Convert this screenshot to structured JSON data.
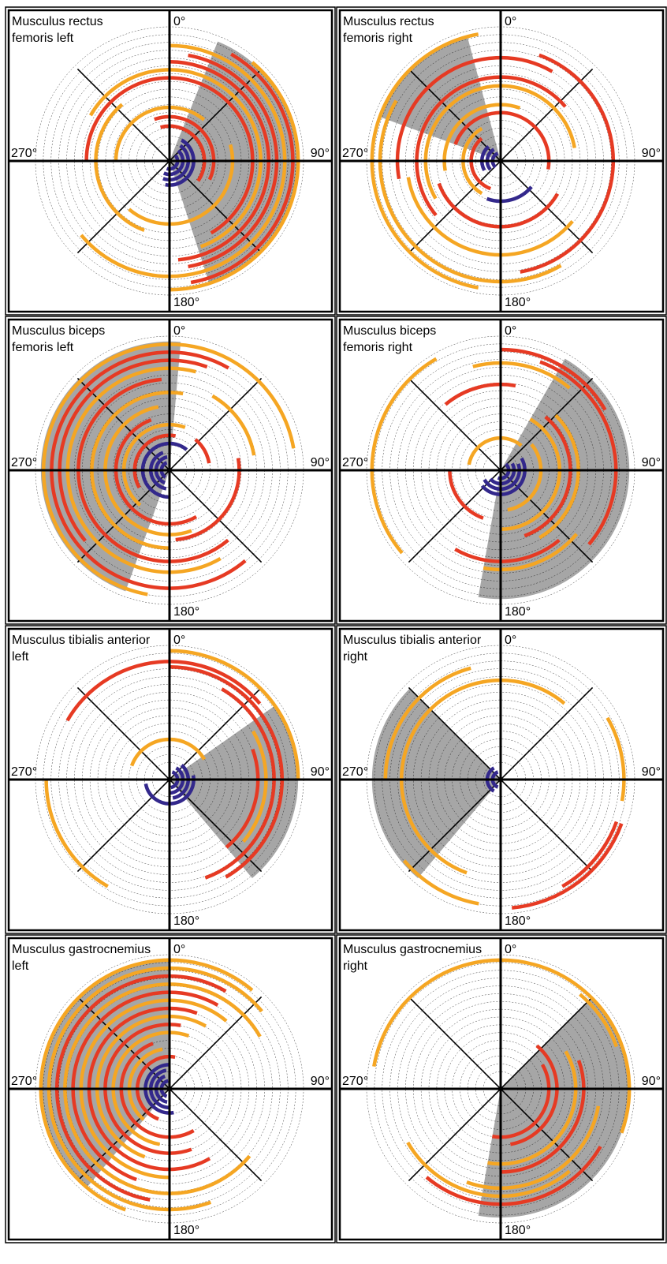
{
  "colors": {
    "red": "#e63a23",
    "orange": "#f5a623",
    "blue": "#33288c",
    "sector": "#a6a6a6",
    "axis": "#000000",
    "ring": "#000000"
  },
  "angle_labels": [
    "0°",
    "90°",
    "180°",
    "270°"
  ],
  "chart_data": [
    {
      "type": "polar-arc",
      "title": [
        "Musculus rectus",
        "femoris left"
      ],
      "sector": {
        "start": 22,
        "end": 162
      },
      "arcs": [
        {
          "r": 0.06,
          "start": 45,
          "end": 200,
          "color": "blue"
        },
        {
          "r": 0.1,
          "start": 40,
          "end": 205,
          "color": "blue"
        },
        {
          "r": 0.14,
          "start": 35,
          "end": 200,
          "color": "blue"
        },
        {
          "r": 0.18,
          "start": 30,
          "end": 190,
          "color": "blue"
        },
        {
          "r": 0.26,
          "start": 345,
          "end": 125,
          "color": "red"
        },
        {
          "r": 0.33,
          "start": 340,
          "end": 115,
          "color": "red"
        },
        {
          "r": 0.4,
          "start": 270,
          "end": 40,
          "color": "orange"
        },
        {
          "r": 0.47,
          "start": 75,
          "end": 220,
          "color": "orange"
        },
        {
          "r": 0.55,
          "start": 200,
          "end": 320,
          "color": "orange"
        },
        {
          "r": 0.62,
          "start": 270,
          "end": 150,
          "color": "red"
        },
        {
          "r": 0.68,
          "start": 300,
          "end": 160,
          "color": "orange"
        },
        {
          "r": 0.74,
          "start": 0,
          "end": 175,
          "color": "red"
        },
        {
          "r": 0.8,
          "start": 10,
          "end": 170,
          "color": "red"
        },
        {
          "r": 0.86,
          "start": 0,
          "end": 230,
          "color": "orange"
        },
        {
          "r": 0.92,
          "start": 30,
          "end": 170,
          "color": "red"
        },
        {
          "r": 0.96,
          "start": 40,
          "end": 180,
          "color": "orange"
        }
      ]
    },
    {
      "type": "polar-arc",
      "title": [
        "Musculus rectus",
        "femoris right"
      ],
      "sector": {
        "start": 290,
        "end": 345
      },
      "arcs": [
        {
          "r": 0.06,
          "start": 220,
          "end": 340,
          "color": "blue"
        },
        {
          "r": 0.1,
          "start": 230,
          "end": 330,
          "color": "blue"
        },
        {
          "r": 0.14,
          "start": 240,
          "end": 320,
          "color": "blue"
        },
        {
          "r": 0.3,
          "start": 130,
          "end": 200,
          "color": "blue"
        },
        {
          "r": 0.22,
          "start": 200,
          "end": 320,
          "color": "red"
        },
        {
          "r": 0.28,
          "start": 210,
          "end": 330,
          "color": "orange"
        },
        {
          "r": 0.36,
          "start": 290,
          "end": 100,
          "color": "red"
        },
        {
          "r": 0.42,
          "start": 260,
          "end": 20,
          "color": "orange"
        },
        {
          "r": 0.49,
          "start": 120,
          "end": 250,
          "color": "red"
        },
        {
          "r": 0.56,
          "start": 240,
          "end": 80,
          "color": "orange"
        },
        {
          "r": 0.63,
          "start": 230,
          "end": 50,
          "color": "red"
        },
        {
          "r": 0.7,
          "start": 130,
          "end": 260,
          "color": "orange"
        },
        {
          "r": 0.77,
          "start": 260,
          "end": 30,
          "color": "red"
        },
        {
          "r": 0.84,
          "start": 20,
          "end": 170,
          "color": "red"
        },
        {
          "r": 0.9,
          "start": 150,
          "end": 300,
          "color": "orange"
        },
        {
          "r": 0.96,
          "start": 190,
          "end": 350,
          "color": "orange"
        }
      ]
    },
    {
      "type": "polar-arc",
      "title": [
        "Musculus biceps",
        "femoris left"
      ],
      "sector": {
        "start": 200,
        "end": 365
      },
      "arcs": [
        {
          "r": 0.06,
          "start": 210,
          "end": 340,
          "color": "blue"
        },
        {
          "r": 0.1,
          "start": 200,
          "end": 350,
          "color": "blue"
        },
        {
          "r": 0.14,
          "start": 190,
          "end": 340,
          "color": "blue"
        },
        {
          "r": 0.2,
          "start": 180,
          "end": 40,
          "color": "blue"
        },
        {
          "r": 0.26,
          "start": 240,
          "end": 10,
          "color": "red"
        },
        {
          "r": 0.3,
          "start": 40,
          "end": 80,
          "color": "red"
        },
        {
          "r": 0.34,
          "start": 220,
          "end": 20,
          "color": "orange"
        },
        {
          "r": 0.4,
          "start": 150,
          "end": 340,
          "color": "red"
        },
        {
          "r": 0.48,
          "start": 160,
          "end": 350,
          "color": "orange"
        },
        {
          "r": 0.52,
          "start": 80,
          "end": 175,
          "color": "red"
        },
        {
          "r": 0.58,
          "start": 180,
          "end": 10,
          "color": "orange"
        },
        {
          "r": 0.64,
          "start": 30,
          "end": 80,
          "color": "orange"
        },
        {
          "r": 0.68,
          "start": 140,
          "end": 355,
          "color": "red"
        },
        {
          "r": 0.76,
          "start": 150,
          "end": 15,
          "color": "orange"
        },
        {
          "r": 0.82,
          "start": 230,
          "end": 20,
          "color": "red"
        },
        {
          "r": 0.88,
          "start": 140,
          "end": 30,
          "color": "red"
        },
        {
          "r": 0.94,
          "start": 190,
          "end": 80,
          "color": "orange"
        }
      ]
    },
    {
      "type": "polar-arc",
      "title": [
        "Musculus biceps",
        "femoris right"
      ],
      "sector": {
        "start": 30,
        "end": 190
      },
      "arcs": [
        {
          "r": 0.06,
          "start": 40,
          "end": 200,
          "color": "blue"
        },
        {
          "r": 0.1,
          "start": 60,
          "end": 230,
          "color": "blue"
        },
        {
          "r": 0.14,
          "start": 70,
          "end": 240,
          "color": "blue"
        },
        {
          "r": 0.18,
          "start": 60,
          "end": 230,
          "color": "blue"
        },
        {
          "r": 0.24,
          "start": 280,
          "end": 40,
          "color": "orange"
        },
        {
          "r": 0.3,
          "start": 50,
          "end": 170,
          "color": "orange"
        },
        {
          "r": 0.38,
          "start": 200,
          "end": 270,
          "color": "red"
        },
        {
          "r": 0.44,
          "start": 30,
          "end": 180,
          "color": "orange"
        },
        {
          "r": 0.52,
          "start": 40,
          "end": 160,
          "color": "red"
        },
        {
          "r": 0.58,
          "start": 45,
          "end": 150,
          "color": "orange"
        },
        {
          "r": 0.64,
          "start": 320,
          "end": 10,
          "color": "red"
        },
        {
          "r": 0.68,
          "start": 140,
          "end": 210,
          "color": "red"
        },
        {
          "r": 0.74,
          "start": 130,
          "end": 190,
          "color": "orange"
        },
        {
          "r": 0.8,
          "start": 345,
          "end": 40,
          "color": "orange"
        },
        {
          "r": 0.86,
          "start": 20,
          "end": 130,
          "color": "red"
        },
        {
          "r": 0.9,
          "start": 0,
          "end": 60,
          "color": "red"
        },
        {
          "r": 0.96,
          "start": 230,
          "end": 330,
          "color": "orange"
        }
      ]
    },
    {
      "type": "polar-arc",
      "title": [
        "Musculus tibialis anterior",
        "left"
      ],
      "sector": {
        "start": 55,
        "end": 140
      },
      "arcs": [
        {
          "r": 0.06,
          "start": 20,
          "end": 170,
          "color": "blue"
        },
        {
          "r": 0.1,
          "start": 30,
          "end": 180,
          "color": "blue"
        },
        {
          "r": 0.14,
          "start": 40,
          "end": 170,
          "color": "blue"
        },
        {
          "r": 0.18,
          "start": 80,
          "end": 260,
          "color": "blue"
        },
        {
          "r": 0.3,
          "start": 290,
          "end": 60,
          "color": "orange"
        },
        {
          "r": 0.66,
          "start": 70,
          "end": 140,
          "color": "red"
        },
        {
          "r": 0.72,
          "start": 60,
          "end": 130,
          "color": "orange"
        },
        {
          "r": 0.78,
          "start": 30,
          "end": 160,
          "color": "red"
        },
        {
          "r": 0.84,
          "start": 0,
          "end": 150,
          "color": "red"
        },
        {
          "r": 0.88,
          "start": 300,
          "end": 50,
          "color": "red"
        },
        {
          "r": 0.92,
          "start": 210,
          "end": 270,
          "color": "orange"
        },
        {
          "r": 0.96,
          "start": 0,
          "end": 90,
          "color": "orange"
        }
      ]
    },
    {
      "type": "polar-arc",
      "title": [
        "Musculus tibialis anterior",
        "right"
      ],
      "sector": {
        "start": 220,
        "end": 315
      },
      "arcs": [
        {
          "r": 0.06,
          "start": 200,
          "end": 340,
          "color": "blue"
        },
        {
          "r": 0.1,
          "start": 210,
          "end": 330,
          "color": "blue"
        },
        {
          "r": 0.74,
          "start": 200,
          "end": 40,
          "color": "orange"
        },
        {
          "r": 0.86,
          "start": 270,
          "end": 345,
          "color": "orange"
        },
        {
          "r": 0.92,
          "start": 110,
          "end": 150,
          "color": "red"
        },
        {
          "r": 0.96,
          "start": 110,
          "end": 175,
          "color": "red"
        },
        {
          "r": 0.94,
          "start": 190,
          "end": 230,
          "color": "orange"
        },
        {
          "r": 0.92,
          "start": 60,
          "end": 100,
          "color": "orange"
        }
      ]
    },
    {
      "type": "polar-arc",
      "title": [
        "Musculus gastrocnemius",
        "left"
      ],
      "sector": {
        "start": 220,
        "end": 360
      },
      "arcs": [
        {
          "r": 0.06,
          "start": 200,
          "end": 350,
          "color": "blue"
        },
        {
          "r": 0.1,
          "start": 190,
          "end": 340,
          "color": "blue"
        },
        {
          "r": 0.14,
          "start": 180,
          "end": 350,
          "color": "blue"
        },
        {
          "r": 0.18,
          "start": 170,
          "end": 360,
          "color": "blue"
        },
        {
          "r": 0.24,
          "start": 200,
          "end": 10,
          "color": "red"
        },
        {
          "r": 0.3,
          "start": 220,
          "end": 350,
          "color": "orange"
        },
        {
          "r": 0.36,
          "start": 150,
          "end": 340,
          "color": "red"
        },
        {
          "r": 0.42,
          "start": 190,
          "end": 20,
          "color": "orange"
        },
        {
          "r": 0.48,
          "start": 160,
          "end": 10,
          "color": "red"
        },
        {
          "r": 0.54,
          "start": 200,
          "end": 30,
          "color": "orange"
        },
        {
          "r": 0.6,
          "start": 150,
          "end": 20,
          "color": "red"
        },
        {
          "r": 0.66,
          "start": 180,
          "end": 40,
          "color": "orange"
        },
        {
          "r": 0.72,
          "start": 200,
          "end": 30,
          "color": "red"
        },
        {
          "r": 0.78,
          "start": 130,
          "end": 60,
          "color": "orange"
        },
        {
          "r": 0.84,
          "start": 190,
          "end": 30,
          "color": "red"
        },
        {
          "r": 0.9,
          "start": 160,
          "end": 50,
          "color": "orange"
        },
        {
          "r": 0.96,
          "start": 200,
          "end": 40,
          "color": "orange"
        }
      ]
    },
    {
      "type": "polar-arc",
      "title": [
        "Musculus gastrocnemius",
        "right"
      ],
      "sector": {
        "start": 45,
        "end": 190
      },
      "arcs": [
        {
          "r": 0.36,
          "start": 60,
          "end": 190,
          "color": "red"
        },
        {
          "r": 0.42,
          "start": 40,
          "end": 170,
          "color": "red"
        },
        {
          "r": 0.56,
          "start": 60,
          "end": 190,
          "color": "orange"
        },
        {
          "r": 0.62,
          "start": 70,
          "end": 180,
          "color": "red"
        },
        {
          "r": 0.74,
          "start": 100,
          "end": 200,
          "color": "orange"
        },
        {
          "r": 0.8,
          "start": 140,
          "end": 240,
          "color": "orange"
        },
        {
          "r": 0.86,
          "start": 120,
          "end": 220,
          "color": "red"
        },
        {
          "r": 0.92,
          "start": 40,
          "end": 70,
          "color": "orange"
        },
        {
          "r": 0.96,
          "start": 280,
          "end": 110,
          "color": "orange"
        }
      ]
    }
  ]
}
